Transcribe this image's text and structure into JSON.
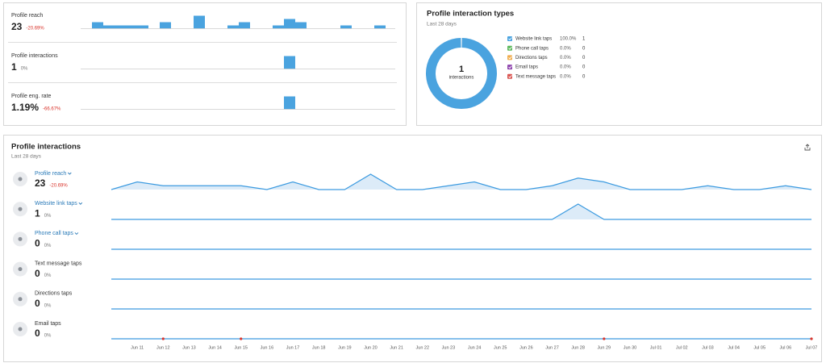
{
  "summary_cards": [
    {
      "label": "Profile reach",
      "value": 23,
      "change": "-20.69%",
      "bars": [
        0,
        2,
        1,
        1,
        1,
        1,
        0,
        2,
        0,
        0,
        4,
        0,
        0,
        1,
        2,
        0,
        0,
        1,
        3,
        2,
        0,
        0,
        0,
        1,
        0,
        0,
        1,
        0
      ]
    },
    {
      "label": "Profile interactions",
      "value": 1,
      "change": "0%",
      "bars": [
        0,
        0,
        0,
        0,
        0,
        0,
        0,
        0,
        0,
        0,
        0,
        0,
        0,
        0,
        0,
        0,
        0,
        0,
        1,
        0,
        0,
        0,
        0,
        0,
        0,
        0,
        0,
        0
      ]
    },
    {
      "label": "Profile eng. rate",
      "value": "1.19%",
      "change": "-66.67%",
      "bars": [
        0,
        0,
        0,
        0,
        0,
        0,
        0,
        0,
        0,
        0,
        0,
        0,
        0,
        0,
        0,
        0,
        0,
        0,
        33.33,
        0,
        0,
        0,
        0,
        0,
        0,
        0,
        0,
        0
      ]
    }
  ],
  "interaction_types": {
    "title": "Profile interaction types",
    "subtitle": "Last 28 days",
    "total": 1,
    "total_label": "interactions",
    "items": [
      {
        "name": "Website link taps",
        "color": "#4aa3df",
        "percent": "100.0%",
        "count": 1
      },
      {
        "name": "Phone call taps",
        "color": "#5cb85c",
        "percent": "0.0%",
        "count": 0
      },
      {
        "name": "Directions taps",
        "color": "#f0ad4e",
        "percent": "0.0%",
        "count": 0
      },
      {
        "name": "Email taps",
        "color": "#8e44ad",
        "percent": "0.0%",
        "count": 0
      },
      {
        "name": "Text message taps",
        "color": "#d9534f",
        "percent": "0.0%",
        "count": 0
      }
    ]
  },
  "interactions_panel": {
    "title": "Profile interactions",
    "subtitle": "Last 28 days",
    "dates": [
      null,
      "Jun 11",
      "Jun 12",
      "Jun 13",
      "Jun 14",
      "Jun 15",
      "Jun 16",
      "Jun 17",
      "Jun 18",
      "Jun 19",
      "Jun 20",
      "Jun 21",
      "Jun 22",
      "Jun 23",
      "Jun 24",
      "Jun 25",
      "Jun 26",
      "Jun 27",
      "Jun 28",
      "Jun 29",
      "Jun 30",
      "Jul 01",
      "Jul 02",
      "Jul 03",
      "Jul 04",
      "Jul 05",
      "Jul 06",
      "Jul 07"
    ],
    "metrics": [
      {
        "name": "Profile reach",
        "value": 23,
        "change": "-20.69%",
        "values": [
          0,
          2,
          1,
          1,
          1,
          1,
          0,
          2,
          0,
          0,
          4,
          0,
          0,
          1,
          2,
          0,
          0,
          1,
          3,
          2,
          0,
          0,
          0,
          1,
          0,
          0,
          1,
          0
        ]
      },
      {
        "name": "Website link taps",
        "value": 1,
        "change": "0%",
        "values": [
          0,
          0,
          0,
          0,
          0,
          0,
          0,
          0,
          0,
          0,
          0,
          0,
          0,
          0,
          0,
          0,
          0,
          0,
          1,
          0,
          0,
          0,
          0,
          0,
          0,
          0,
          0,
          0
        ]
      },
      {
        "name": "Phone call taps",
        "value": 0,
        "change": "0%",
        "values": [
          0,
          0,
          0,
          0,
          0,
          0,
          0,
          0,
          0,
          0,
          0,
          0,
          0,
          0,
          0,
          0,
          0,
          0,
          0,
          0,
          0,
          0,
          0,
          0,
          0,
          0,
          0,
          0
        ]
      },
      {
        "name": "Text message taps",
        "value": 0,
        "change": "0%",
        "values": [
          0,
          0,
          0,
          0,
          0,
          0,
          0,
          0,
          0,
          0,
          0,
          0,
          0,
          0,
          0,
          0,
          0,
          0,
          0,
          0,
          0,
          0,
          0,
          0,
          0,
          0,
          0,
          0
        ]
      },
      {
        "name": "Directions taps",
        "value": 0,
        "change": "0%",
        "values": [
          0,
          0,
          0,
          0,
          0,
          0,
          0,
          0,
          0,
          0,
          0,
          0,
          0,
          0,
          0,
          0,
          0,
          0,
          0,
          0,
          0,
          0,
          0,
          0,
          0,
          0,
          0,
          0
        ]
      },
      {
        "name": "Email taps",
        "value": 0,
        "change": "0%",
        "values": [
          0,
          0,
          0,
          0,
          0,
          0,
          0,
          0,
          0,
          0,
          0,
          0,
          0,
          0,
          0,
          0,
          0,
          0,
          0,
          0,
          0,
          0,
          0,
          0,
          0,
          0,
          0,
          0
        ]
      }
    ]
  }
}
